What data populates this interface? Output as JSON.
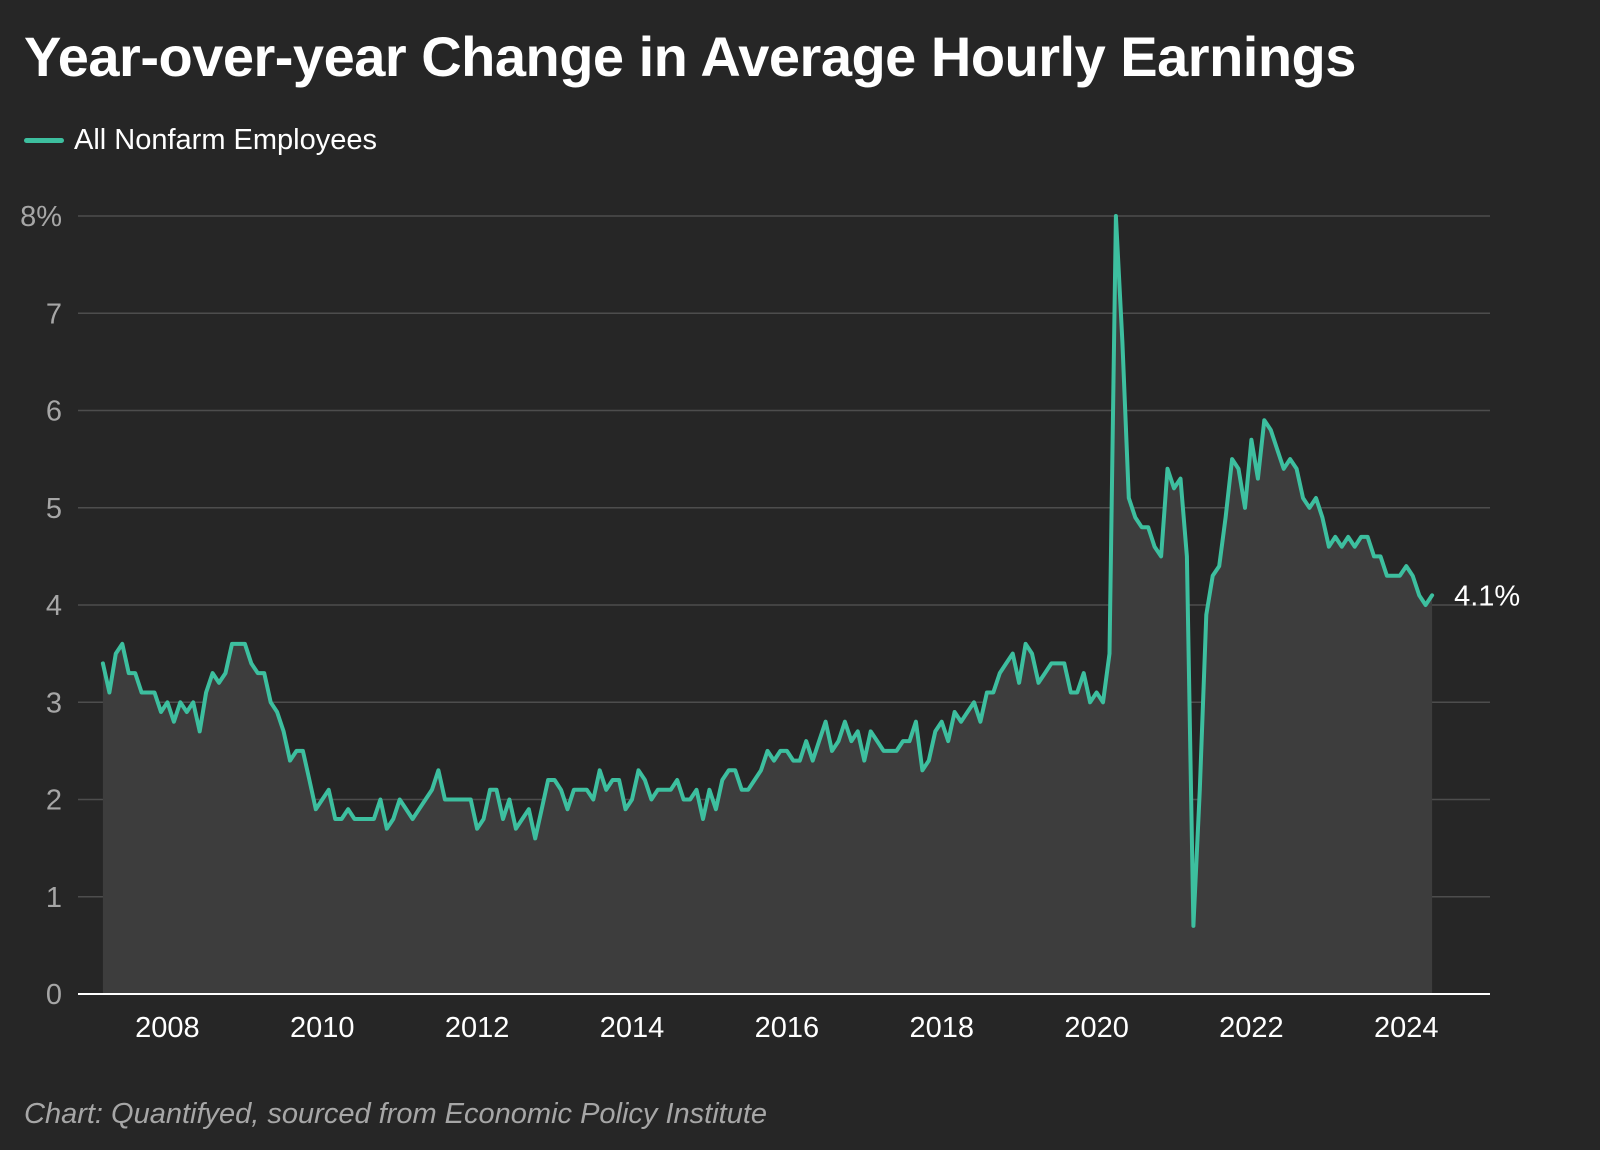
{
  "chart_data": {
    "type": "area",
    "title": "Year-over-year Change in Average Hourly Earnings",
    "xlabel": "",
    "ylabel": "",
    "source": "Chart: Quantifyed, sourced from Economic Policy Institute",
    "grid": true,
    "legend_position": "top-left",
    "xlim": [
      2007.0,
      2024.5
    ],
    "ylim": [
      0,
      8
    ],
    "x_ticks": [
      {
        "value": 2008,
        "label": "2008"
      },
      {
        "value": 2010,
        "label": "2010"
      },
      {
        "value": 2012,
        "label": "2012"
      },
      {
        "value": 2014,
        "label": "2014"
      },
      {
        "value": 2016,
        "label": "2016"
      },
      {
        "value": 2018,
        "label": "2018"
      },
      {
        "value": 2020,
        "label": "2020"
      },
      {
        "value": 2022,
        "label": "2022"
      },
      {
        "value": 2024,
        "label": "2024"
      }
    ],
    "y_ticks": [
      {
        "value": 0,
        "label": "0"
      },
      {
        "value": 1,
        "label": "1"
      },
      {
        "value": 2,
        "label": "2"
      },
      {
        "value": 3,
        "label": "3"
      },
      {
        "value": 4,
        "label": "4"
      },
      {
        "value": 5,
        "label": "5"
      },
      {
        "value": 6,
        "label": "6"
      },
      {
        "value": 7,
        "label": "7"
      },
      {
        "value": 8,
        "label": "8%"
      }
    ],
    "series": [
      {
        "name": "All Nonfarm Employees",
        "color": "#3dbf9f",
        "last_value_label": "4.1%",
        "start": "2007-03",
        "frequency": "monthly",
        "values": [
          3.4,
          3.1,
          3.5,
          3.6,
          3.3,
          3.3,
          3.1,
          3.1,
          3.1,
          2.9,
          3.0,
          2.8,
          3.0,
          2.9,
          3.0,
          2.7,
          3.1,
          3.3,
          3.2,
          3.3,
          3.6,
          3.6,
          3.6,
          3.4,
          3.3,
          3.3,
          3.0,
          2.9,
          2.7,
          2.4,
          2.5,
          2.5,
          2.2,
          1.9,
          2.0,
          2.1,
          1.8,
          1.8,
          1.9,
          1.8,
          1.8,
          1.8,
          1.8,
          2.0,
          1.7,
          1.8,
          2.0,
          1.9,
          1.8,
          1.9,
          2.0,
          2.1,
          2.3,
          2.0,
          2.0,
          2.0,
          2.0,
          2.0,
          1.7,
          1.8,
          2.1,
          2.1,
          1.8,
          2.0,
          1.7,
          1.8,
          1.9,
          1.6,
          1.9,
          2.2,
          2.2,
          2.1,
          1.9,
          2.1,
          2.1,
          2.1,
          2.0,
          2.3,
          2.1,
          2.2,
          2.2,
          1.9,
          2.0,
          2.3,
          2.2,
          2.0,
          2.1,
          2.1,
          2.1,
          2.2,
          2.0,
          2.0,
          2.1,
          1.8,
          2.1,
          1.9,
          2.2,
          2.3,
          2.3,
          2.1,
          2.1,
          2.2,
          2.3,
          2.5,
          2.4,
          2.5,
          2.5,
          2.4,
          2.4,
          2.6,
          2.4,
          2.6,
          2.8,
          2.5,
          2.6,
          2.8,
          2.6,
          2.7,
          2.4,
          2.7,
          2.6,
          2.5,
          2.5,
          2.5,
          2.6,
          2.6,
          2.8,
          2.3,
          2.4,
          2.7,
          2.8,
          2.6,
          2.9,
          2.8,
          2.9,
          3.0,
          2.8,
          3.1,
          3.1,
          3.3,
          3.4,
          3.5,
          3.2,
          3.6,
          3.5,
          3.2,
          3.3,
          3.4,
          3.4,
          3.4,
          3.1,
          3.1,
          3.3,
          3.0,
          3.1,
          3.0,
          3.5,
          8.0,
          6.7,
          5.1,
          4.9,
          4.8,
          4.8,
          4.6,
          4.5,
          5.4,
          5.2,
          5.3,
          4.5,
          0.7,
          2.1,
          3.9,
          4.3,
          4.4,
          4.9,
          5.5,
          5.4,
          5.0,
          5.7,
          5.3,
          5.9,
          5.8,
          5.6,
          5.4,
          5.5,
          5.4,
          5.1,
          5.0,
          5.1,
          4.9,
          4.6,
          4.7,
          4.6,
          4.7,
          4.6,
          4.7,
          4.7,
          4.5,
          4.5,
          4.3,
          4.3,
          4.3,
          4.4,
          4.3,
          4.1,
          4.0,
          4.1
        ]
      }
    ]
  }
}
